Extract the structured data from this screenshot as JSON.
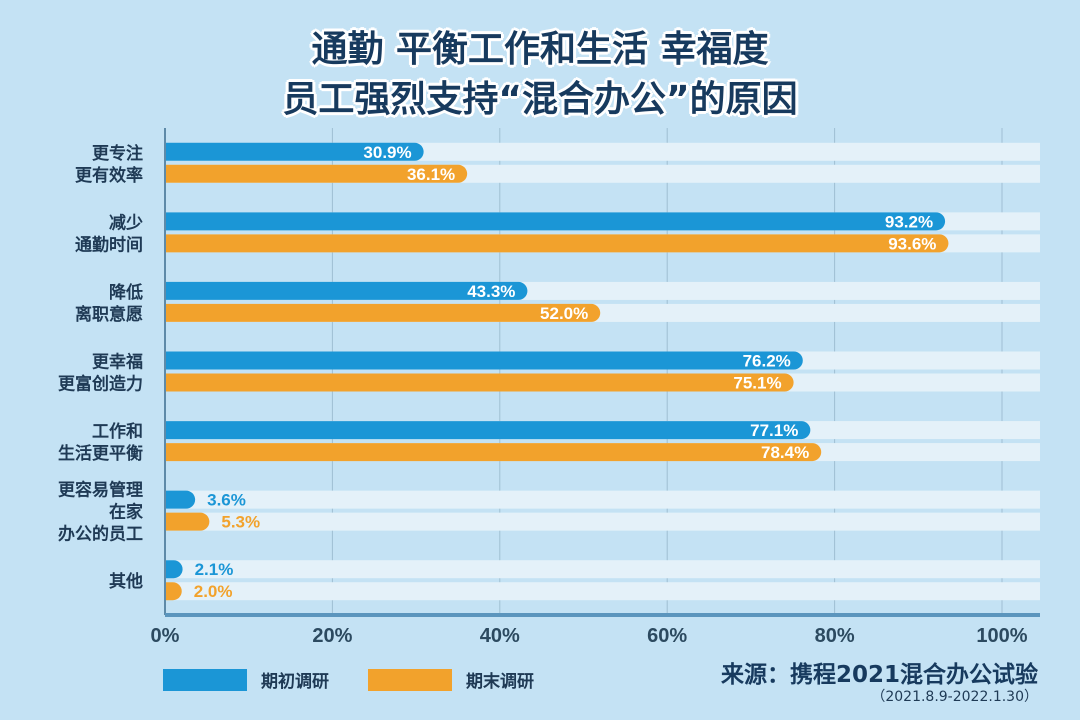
{
  "title": {
    "line1": "通勤 平衡工作和生活 幸福度",
    "line2": "员工强烈支持“混合办公”的原因"
  },
  "colors": {
    "series1": "#1b96d6",
    "series2": "#f2a22c",
    "track": "#e4f1f9",
    "background": "#c4e2f4",
    "text": "#1f3a55"
  },
  "chart_data": {
    "type": "bar",
    "orientation": "horizontal",
    "categories": [
      [
        "更专注",
        "更有效率"
      ],
      [
        "减少",
        "通勤时间"
      ],
      [
        "降低",
        "离职意愿"
      ],
      [
        "更幸福",
        "更富创造力"
      ],
      [
        "工作和",
        "生活更平衡"
      ],
      [
        "更容易管理",
        "在家",
        "办公的员工"
      ],
      [
        "其他"
      ]
    ],
    "series": [
      {
        "name": "期初调研",
        "values": [
          30.9,
          93.2,
          43.3,
          76.2,
          77.1,
          3.6,
          2.1
        ]
      },
      {
        "name": "期末调研",
        "values": [
          36.1,
          93.6,
          52.0,
          75.1,
          78.4,
          5.3,
          2.0
        ]
      }
    ],
    "value_labels": [
      [
        "30.9%",
        "93.2%",
        "43.3%",
        "76.2%",
        "77.1%",
        "3.6%",
        "2.1%"
      ],
      [
        "36.1%",
        "93.6%",
        "52.0%",
        "75.1%",
        "78.4%",
        "5.3%",
        "2.0%"
      ]
    ],
    "xlim": [
      0,
      100
    ],
    "xticks": [
      "0%",
      "20%",
      "40%",
      "60%",
      "80%",
      "100%"
    ],
    "grid": true,
    "legend": "bottom-left"
  },
  "source": {
    "line1": "来源：携程2021混合办公试验",
    "line2": "（2021.8.9-2022.1.30）"
  }
}
